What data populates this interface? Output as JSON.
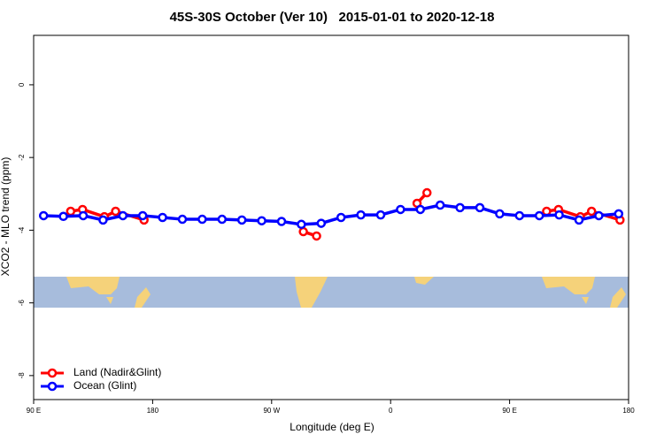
{
  "chart_data": {
    "type": "line",
    "title": "45S-30S October (Ver 10)   2015-01-01 to 2020-12-18",
    "x_label": "Longitude (deg E)",
    "y_label": "XCO2 - MLO trend (ppm)",
    "xlim": [
      90,
      540
    ],
    "xticks": [
      {
        "value": 90,
        "label": "90 E"
      },
      180,
      {
        "value": 270,
        "label": "90 W"
      },
      {
        "value": 360,
        "label": "0"
      },
      {
        "value": 450,
        "label": "90 E"
      },
      {
        "value": 540,
        "label": "180"
      }
    ],
    "ylim": [
      -8.66,
      1.36
    ],
    "yticks": [
      0,
      -2,
      -4,
      -6,
      -8
    ],
    "legend": "bottom-left",
    "series": [
      {
        "name": "Land (Nadir&Glint)",
        "color": "#ff0000",
        "x": [
          118,
          127,
          143.5,
          152,
          173.5,
          null,
          294,
          304,
          null,
          380,
          387.5,
          null,
          478,
          487,
          503.5,
          512,
          533.5
        ],
        "values": [
          -3.48,
          -3.43,
          -3.63,
          -3.48,
          -3.72,
          null,
          -4.04,
          -4.16,
          null,
          -3.26,
          -2.97,
          null,
          -3.48,
          -3.43,
          -3.63,
          -3.48,
          -3.72
        ]
      },
      {
        "name": "Ocean (Glint)",
        "color": "#0000ff",
        "x": [
          97.5,
          112.5,
          127.5,
          142.5,
          157.5,
          172.5,
          187.5,
          202.5,
          217.5,
          232.5,
          247.5,
          262.5,
          277.5,
          292.5,
          307.5,
          322.5,
          337.5,
          352.5,
          367.5,
          382.5,
          397.5,
          412.5,
          427.5,
          442.5,
          457.5,
          472.5,
          487.5,
          502.5,
          517.5,
          532.5
        ],
        "values": [
          -3.6,
          -3.62,
          -3.6,
          -3.72,
          -3.6,
          -3.6,
          -3.65,
          -3.7,
          -3.7,
          -3.7,
          -3.72,
          -3.74,
          -3.76,
          -3.84,
          -3.81,
          -3.65,
          -3.58,
          -3.58,
          -3.43,
          -3.43,
          -3.31,
          -3.38,
          -3.38,
          -3.55,
          -3.6,
          -3.6,
          -3.58,
          -3.72,
          -3.6,
          -3.55
        ]
      }
    ]
  }
}
